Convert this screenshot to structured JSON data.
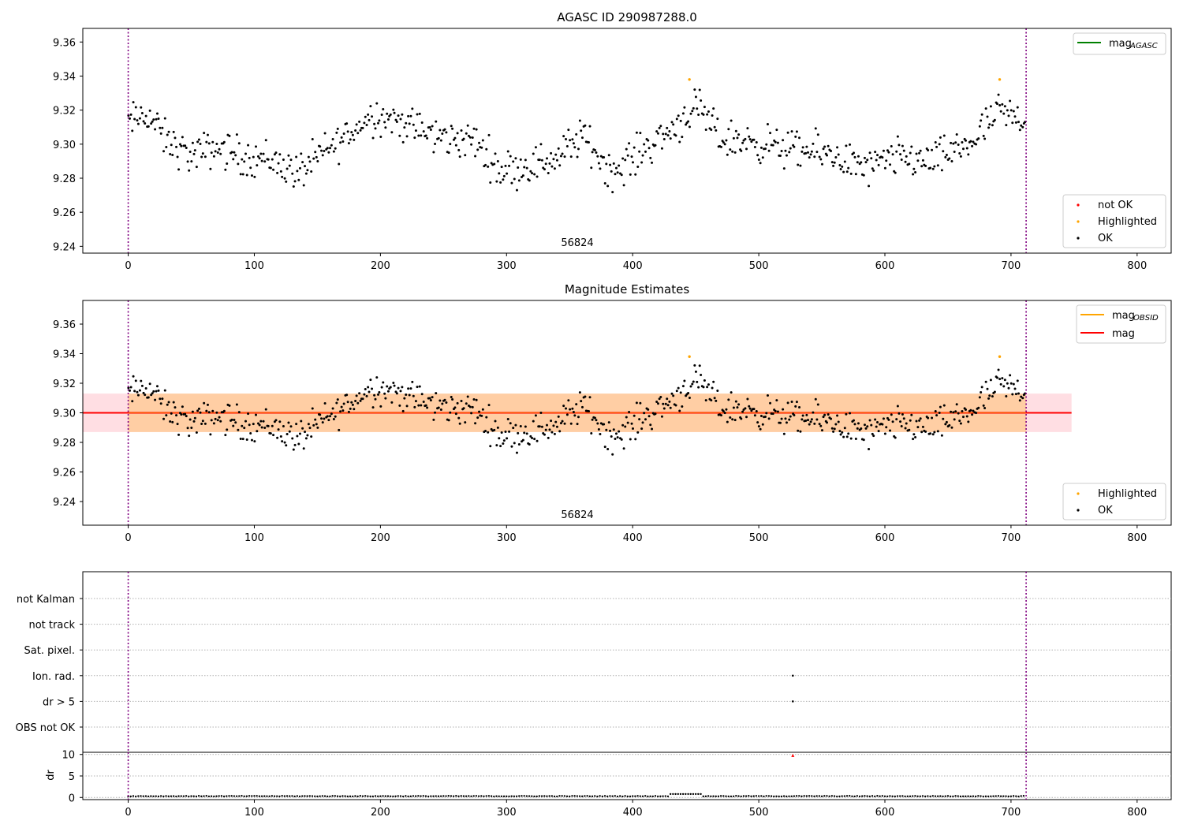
{
  "chart_data": [
    {
      "type": "scatter",
      "title": "AGASC ID 290987288.0",
      "xlabel": "",
      "ylabel": "",
      "xlim": [
        -36,
        827
      ],
      "ylim": [
        9.236,
        9.368
      ],
      "xticks": [
        0,
        100,
        200,
        300,
        400,
        500,
        600,
        700,
        800
      ],
      "yticks": [
        9.24,
        9.26,
        9.28,
        9.3,
        9.32,
        9.34,
        9.36
      ],
      "vlines": [
        0,
        712
      ],
      "annotation": "56824",
      "legend_lines": [
        {
          "label": "mag",
          "subscript": "AGASC",
          "color": "#008000"
        }
      ],
      "legend_points": [
        {
          "label": "not OK",
          "color": "#ff0000"
        },
        {
          "label": "Highlighted",
          "color": "#ffa500"
        },
        {
          "label": "OK",
          "color": "#000000"
        }
      ],
      "highlighted": [
        [
          445,
          9.338
        ],
        [
          691,
          9.338
        ]
      ],
      "ok_points_n": 712,
      "y_range": [
        9.266,
        9.337
      ]
    },
    {
      "type": "scatter",
      "title": "Magnitude Estimates",
      "xlabel": "",
      "ylabel": "",
      "xlim": [
        -36,
        827
      ],
      "ylim": [
        9.224,
        9.376
      ],
      "xticks": [
        0,
        100,
        200,
        300,
        400,
        500,
        600,
        700,
        800
      ],
      "yticks": [
        9.24,
        9.26,
        9.28,
        9.3,
        9.32,
        9.34,
        9.36
      ],
      "vlines": [
        0,
        712
      ],
      "annotation": "56824",
      "mag_line": 9.3,
      "band_pink": {
        "x": [
          -36,
          748
        ],
        "y": [
          9.287,
          9.313
        ]
      },
      "band_orange": {
        "x": [
          0,
          712
        ],
        "y": [
          9.287,
          9.313
        ]
      },
      "legend_lines": [
        {
          "label": "mag",
          "subscript": "OBSID",
          "color": "#ffa500"
        },
        {
          "label": "mag",
          "subscript": "",
          "color": "#ff0000"
        }
      ],
      "legend_points": [
        {
          "label": "Highlighted",
          "color": "#ffa500"
        },
        {
          "label": "OK",
          "color": "#000000"
        }
      ],
      "highlighted": [
        [
          445,
          9.338
        ],
        [
          691,
          9.338
        ]
      ]
    },
    {
      "type": "scatter",
      "title": "",
      "flag_labels": [
        "not Kalman",
        "not track",
        "Sat. pixel.",
        "Ion. rad.",
        "dr > 5",
        "OBS not OK"
      ],
      "flag_points": [
        {
          "flag": "Ion. rad.",
          "x": 527
        },
        {
          "flag": "dr > 5",
          "x": 527
        }
      ],
      "vlines": [
        0,
        712
      ]
    },
    {
      "type": "scatter",
      "title": "",
      "xlabel": "",
      "ylabel": "dr",
      "xlim": [
        -36,
        827
      ],
      "ylim": [
        -0.5,
        10.5
      ],
      "xticks": [
        0,
        100,
        200,
        300,
        400,
        500,
        600,
        700,
        800
      ],
      "yticks": [
        0,
        5,
        10
      ],
      "vlines": [
        0,
        712
      ],
      "outlier": {
        "x": 527,
        "y": 9.8,
        "color": "#ff0000"
      },
      "dr_typical": 0.3,
      "dr_bump": {
        "x": [
          430,
          455
        ],
        "y": 0.8
      }
    }
  ]
}
